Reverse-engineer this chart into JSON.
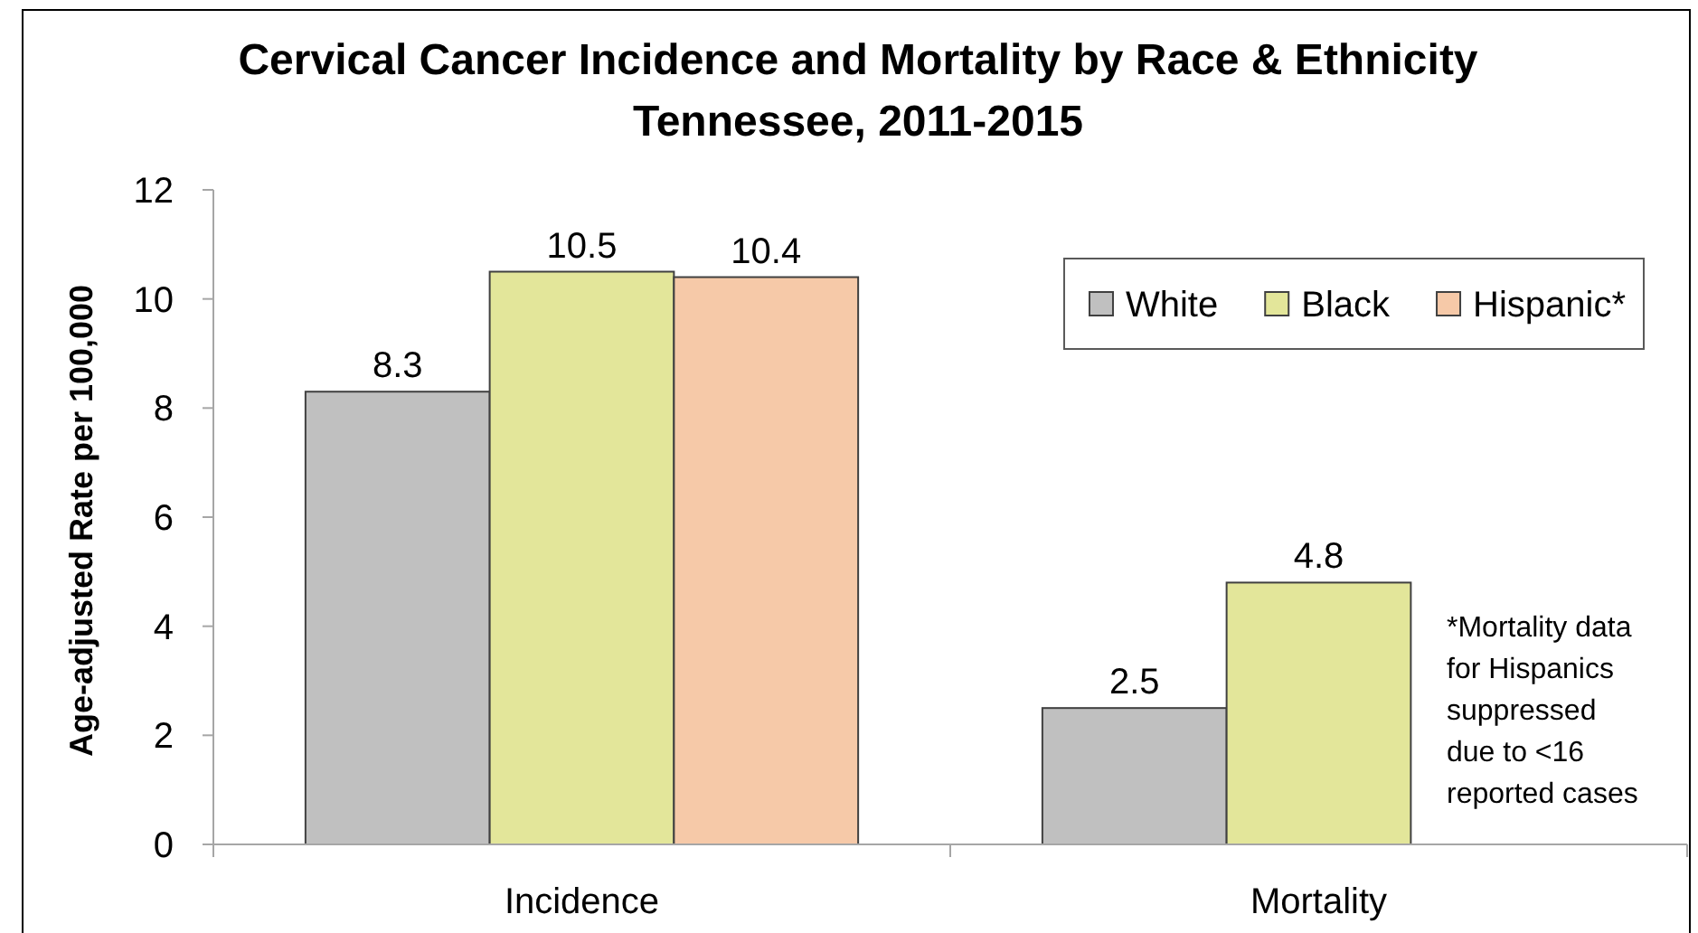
{
  "chart_data": {
    "type": "bar",
    "title": "Cervical Cancer Incidence and Mortality by Race & Ethnicity",
    "subtitle": "Tennessee, 2011-2015",
    "ylabel": "Age-adjusted Rate per 100,000",
    "categories": [
      "Incidence",
      "Mortality"
    ],
    "series": [
      {
        "name": "White",
        "color": "#c0c0c0",
        "values": [
          8.3,
          2.5
        ]
      },
      {
        "name": "Black",
        "color": "#e3e69a",
        "values": [
          10.5,
          4.8
        ]
      },
      {
        "name": "Hispanic*",
        "color": "#f6c9a8",
        "values": [
          10.4,
          null
        ]
      }
    ],
    "ylim": [
      0,
      12
    ],
    "yticks": [
      0,
      2,
      4,
      6,
      8,
      10,
      12
    ],
    "data_labels": true,
    "legend": "top right",
    "annotations": [
      "*Mortality data\nfor Hispanics\nsuppressed\ndue to <16\nreported cases"
    ]
  }
}
